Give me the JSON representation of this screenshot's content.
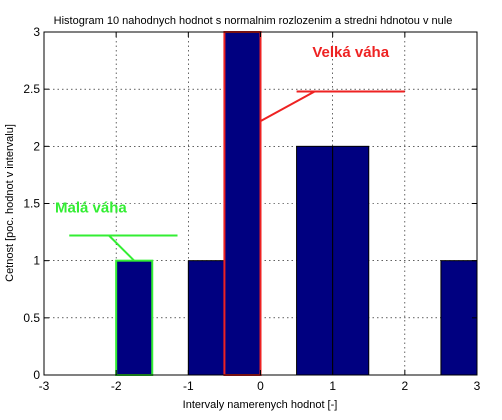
{
  "chart_data": {
    "type": "bar",
    "title": "Histogram 10 nahodnych hodnot s normalnim rozlozenim a stredni hdnotou v nule",
    "xlabel": "Intervaly namerenych hodnot [-]",
    "ylabel": "Cetnost [poc. hodnot v intervalu]",
    "xlim": [
      -3,
      3
    ],
    "ylim": [
      0,
      3
    ],
    "xticks": [
      "-3",
      "-2",
      "-1",
      "0",
      "1",
      "2",
      "3"
    ],
    "xtick_values": [
      -3,
      -2,
      -1,
      0,
      1,
      2,
      3
    ],
    "yticks": [
      "0",
      "0.5",
      "1",
      "1.5",
      "2",
      "2.5",
      "3"
    ],
    "ytick_values": [
      0,
      0.5,
      1,
      1.5,
      2,
      2.5,
      3
    ],
    "grid": true,
    "bin_width": 0.5,
    "bins": [
      {
        "center": -1.75,
        "value": 1
      },
      {
        "center": -0.75,
        "value": 1
      },
      {
        "center": -0.25,
        "value": 3
      },
      {
        "center": 0.75,
        "value": 2
      },
      {
        "center": 1.25,
        "value": 2
      },
      {
        "center": 2.75,
        "value": 1
      }
    ],
    "bar_color": "#000080",
    "annotations": [
      {
        "text": "Malá váha",
        "color": "#33ee33",
        "highlight_bin": 0
      },
      {
        "text": "Velká váha",
        "color": "#ee2222",
        "highlight_bin": 2
      }
    ]
  }
}
